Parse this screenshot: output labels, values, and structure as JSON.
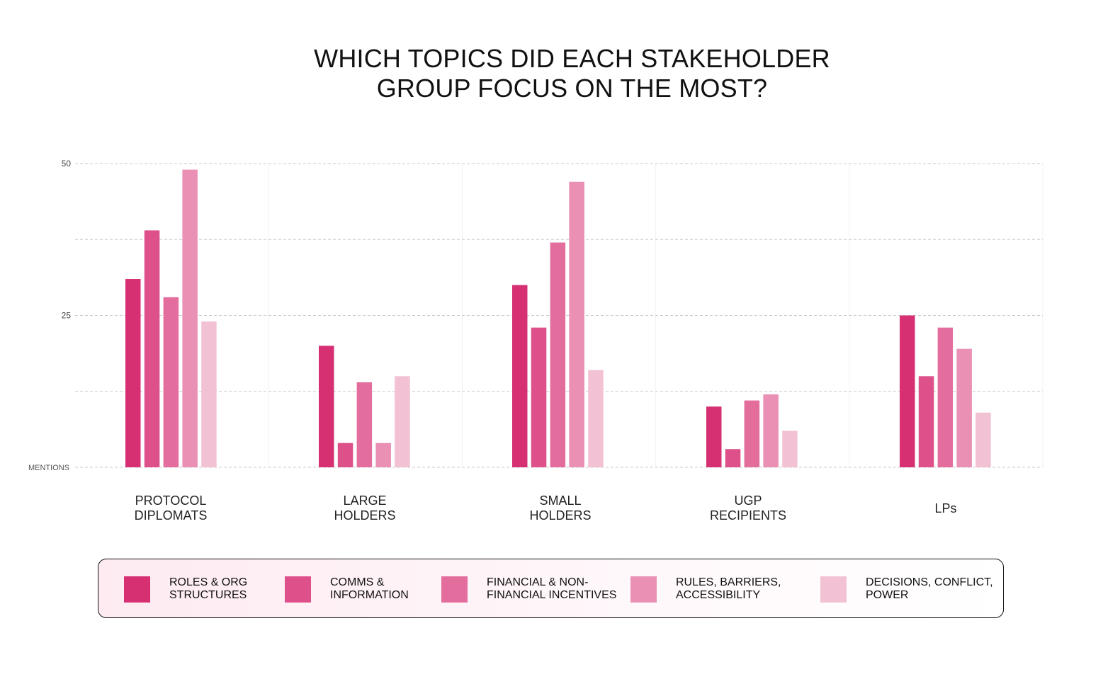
{
  "title_lines": [
    "WHICH TOPICS DID EACH STAKEHOLDER",
    "GROUP FOCUS ON THE MOST?"
  ],
  "chart_data": {
    "type": "bar",
    "title": "WHICH TOPICS DID EACH STAKEHOLDER GROUP FOCUS ON THE MOST?",
    "ylabel": "MENTIONS",
    "ylim": [
      0,
      50
    ],
    "yticks": [
      25,
      50
    ],
    "grid": true,
    "legend_position": "bottom",
    "categories": [
      [
        "PROTOCOL",
        "DIPLOMATS"
      ],
      [
        "LARGE",
        "HOLDERS"
      ],
      [
        "SMALL",
        "HOLDERS"
      ],
      [
        "UGP",
        "RECIPIENTS"
      ],
      [
        "LPs"
      ]
    ],
    "series": [
      {
        "name": [
          "ROLES & ORG",
          "STRUCTURES"
        ],
        "color": "#d63073",
        "values": [
          31,
          20,
          30,
          10,
          25
        ]
      },
      {
        "name": [
          "COMMS &",
          "INFORMATION"
        ],
        "color": "#de5089",
        "values": [
          39,
          4,
          23,
          3,
          15
        ]
      },
      {
        "name": [
          "FINANCIAL & NON-",
          "FINANCIAL INCENTIVES"
        ],
        "color": "#e36d9d",
        "values": [
          28,
          14,
          37,
          11,
          23
        ]
      },
      {
        "name": [
          "RULES, BARRIERS,",
          "ACCESSIBILITY"
        ],
        "color": "#e990b4",
        "values": [
          49,
          4,
          47,
          12,
          19.5
        ]
      },
      {
        "name": [
          "DECISIONS, CONFLICT,",
          "POWER"
        ],
        "color": "#f3c1d4",
        "values": [
          24,
          15,
          16,
          6,
          9
        ]
      }
    ]
  }
}
